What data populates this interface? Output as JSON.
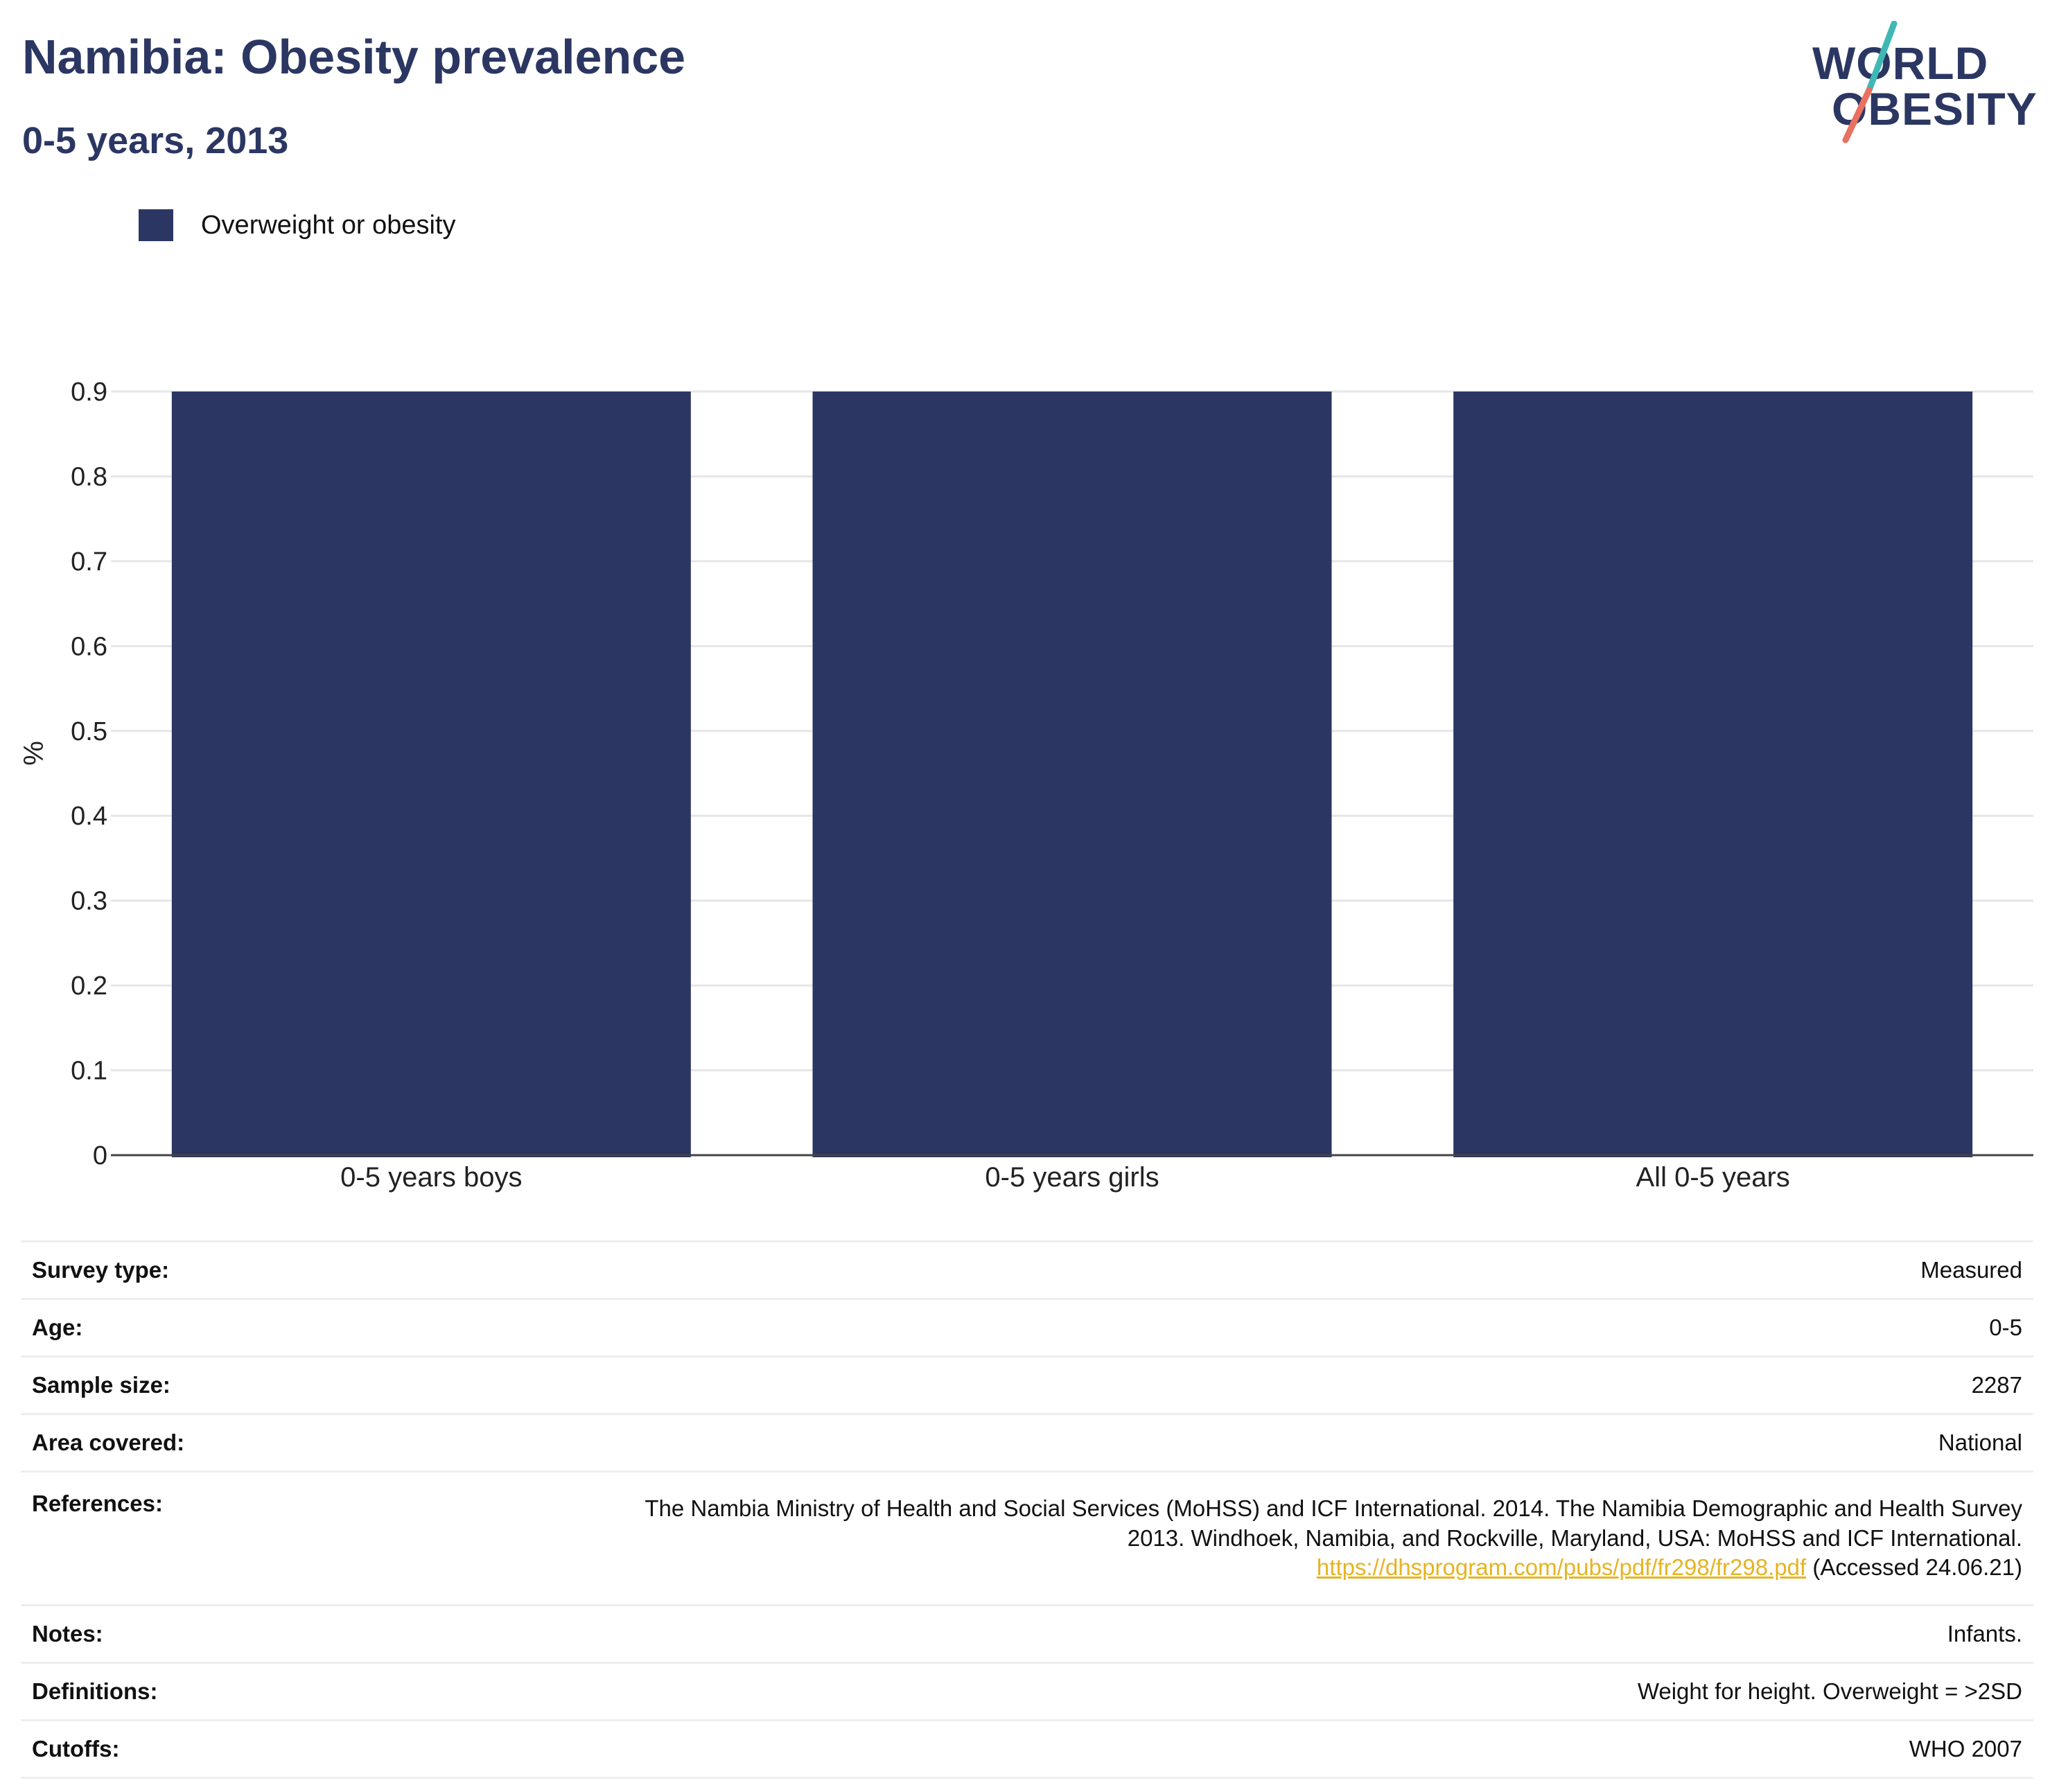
{
  "header": {
    "title": "Namibia: Obesity prevalence",
    "subtitle": "0-5 years, 2013"
  },
  "logo": {
    "line1": "WORLD",
    "line2": "OBESITY",
    "colors": {
      "slash_top": "#3fb8b5",
      "slash_bottom": "#e8715f"
    }
  },
  "legend": {
    "items": [
      {
        "label": "Overweight or obesity",
        "color": "#2b3762"
      }
    ]
  },
  "chart_data": {
    "type": "bar",
    "categories": [
      "0-5 years boys",
      "0-5 years girls",
      "All 0-5 years"
    ],
    "series": [
      {
        "name": "Overweight or obesity",
        "values": [
          0.9,
          0.9,
          0.9
        ],
        "color": "#2b3762"
      }
    ],
    "ylabel": "%",
    "ylim": [
      0,
      0.9
    ],
    "yticks": [
      "0",
      "0.1",
      "0.2",
      "0.3",
      "0.4",
      "0.5",
      "0.6",
      "0.7",
      "0.8",
      "0.9"
    ],
    "grid": true,
    "legend_position": "top-left"
  },
  "info": {
    "rows": [
      {
        "key": "Survey type:",
        "value": "Measured"
      },
      {
        "key": "Age:",
        "value": "0-5"
      },
      {
        "key": "Sample size:",
        "value": "2287"
      },
      {
        "key": "Area covered:",
        "value": "National"
      },
      {
        "key": "References:",
        "value": ""
      },
      {
        "key": "Notes:",
        "value": "Infants."
      },
      {
        "key": "Definitions:",
        "value": "Weight for height. Overweight = >2SD"
      },
      {
        "key": "Cutoffs:",
        "value": "WHO 2007"
      }
    ],
    "references": {
      "line1": "The Nambia Ministry of Health and Social Services (MoHSS) and ICF International. 2014. The Namibia Demographic and Health Survey",
      "line2": "2013. Windhoek, Namibia, and Rockville, Maryland, USA: MoHSS and ICF International.",
      "link": "https://dhsprogram.com/pubs/pdf/fr298/fr298.pdf",
      "accessed": "(Accessed 24.06.21)"
    }
  }
}
